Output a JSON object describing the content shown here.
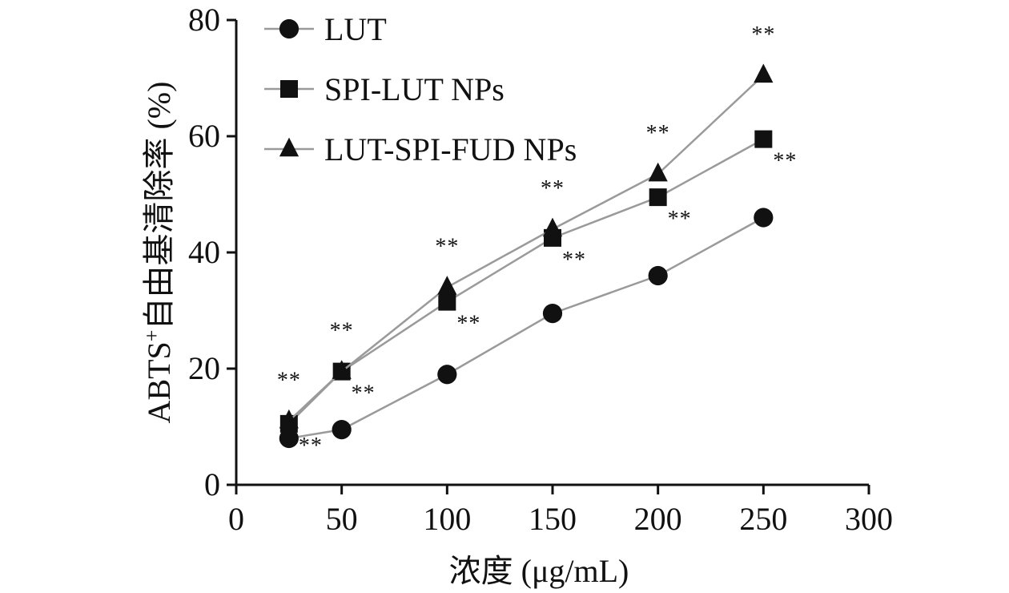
{
  "chart_data": {
    "type": "line",
    "x": [
      25,
      50,
      100,
      150,
      200,
      250
    ],
    "xlabel": "浓度 (μg/mL)",
    "ylabel_main": "ABTS",
    "ylabel_sup": "+",
    "ylabel_rest": "自由基清除率 (%)",
    "xlim": [
      0,
      300
    ],
    "ylim": [
      0,
      80
    ],
    "xticks": [
      "0",
      "50",
      "100",
      "150",
      "200",
      "250",
      "300"
    ],
    "yticks": [
      "0",
      "20",
      "40",
      "60",
      "80"
    ],
    "grid": false,
    "legend_position": "top-left",
    "series": [
      {
        "name": "LUT",
        "marker": "circle",
        "values": [
          8,
          9.5,
          19,
          29.5,
          36,
          46
        ]
      },
      {
        "name": "SPI-LUT NPs",
        "marker": "square",
        "values": [
          10.5,
          19.5,
          31.5,
          42.5,
          49.5,
          59.5
        ]
      },
      {
        "name": "LUT-SPI-FUD NPs",
        "marker": "triangle",
        "values": [
          11,
          19.5,
          34,
          44,
          53.5,
          70.5
        ]
      }
    ],
    "annotations": [
      {
        "text": "**",
        "x": 25,
        "series": "SPI-LUT NPs"
      },
      {
        "text": "**",
        "x": 50,
        "series": "SPI-LUT NPs"
      },
      {
        "text": "**",
        "x": 100,
        "series": "SPI-LUT NPs"
      },
      {
        "text": "**",
        "x": 150,
        "series": "SPI-LUT NPs"
      },
      {
        "text": "**",
        "x": 200,
        "series": "SPI-LUT NPs"
      },
      {
        "text": "**",
        "x": 250,
        "series": "SPI-LUT NPs"
      },
      {
        "text": "**",
        "x": 25,
        "series": "LUT-SPI-FUD NPs"
      },
      {
        "text": "**",
        "x": 50,
        "series": "LUT-SPI-FUD NPs"
      },
      {
        "text": "**",
        "x": 100,
        "series": "LUT-SPI-FUD NPs"
      },
      {
        "text": "**",
        "x": 150,
        "series": "LUT-SPI-FUD NPs"
      },
      {
        "text": "**",
        "x": 200,
        "series": "LUT-SPI-FUD NPs"
      },
      {
        "text": "**",
        "x": 250,
        "series": "LUT-SPI-FUD NPs"
      }
    ],
    "colors": {
      "line": "#9a9a9a",
      "marker": "#111111",
      "axis": "#111111"
    }
  }
}
